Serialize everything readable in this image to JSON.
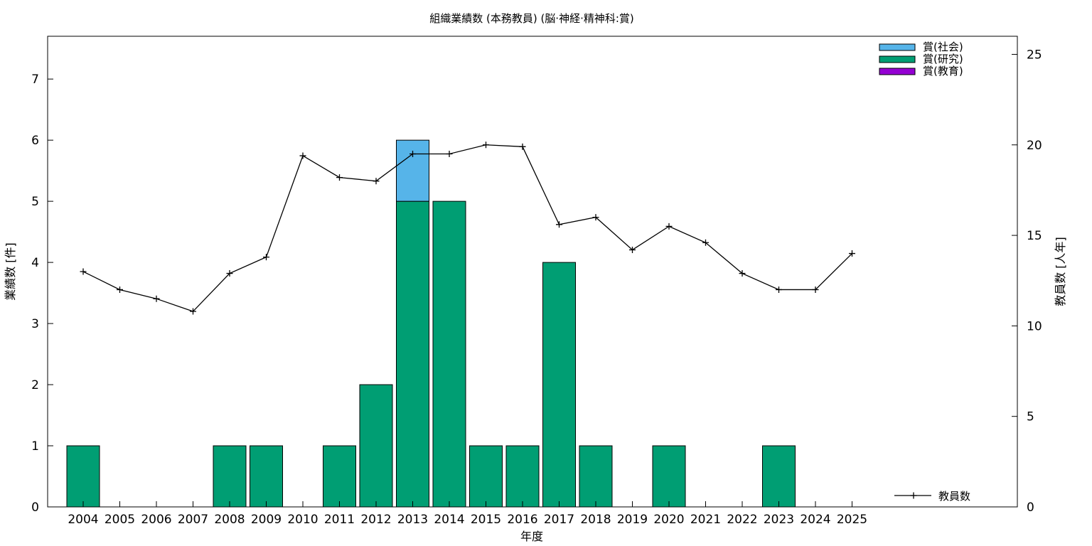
{
  "chart_data": {
    "type": "bar",
    "title": "組織業績数 (本務教員) (脳·神経·精神科:賞)",
    "xlabel": "年度",
    "ylabel": "業績数 [件]",
    "y2label": "教員数 [人年]",
    "categories": [
      "2004",
      "2005",
      "2006",
      "2007",
      "2008",
      "2009",
      "2010",
      "2011",
      "2012",
      "2013",
      "2014",
      "2015",
      "2016",
      "2017",
      "2018",
      "2019",
      "2020",
      "2021",
      "2022",
      "2023",
      "2024",
      "2025"
    ],
    "ylim": [
      0,
      7.7
    ],
    "yticks": [
      0,
      1,
      2,
      3,
      4,
      5,
      6,
      7
    ],
    "y2lim": [
      0,
      26
    ],
    "y2ticks": [
      0,
      5,
      10,
      15,
      20,
      25
    ],
    "stacked": true,
    "grid": false,
    "legend_position": "top-right",
    "series": [
      {
        "name": "賞(研究)",
        "color": "#009e73",
        "axis": "left",
        "values": [
          1,
          0,
          0,
          0,
          1,
          1,
          0,
          1,
          2,
          5,
          5,
          1,
          1,
          4,
          1,
          0,
          1,
          0,
          0,
          1,
          0,
          0
        ]
      },
      {
        "name": "賞(社会)",
        "color": "#56b4e9",
        "axis": "left",
        "values": [
          0,
          0,
          0,
          0,
          0,
          0,
          0,
          0,
          0,
          1,
          0,
          0,
          0,
          0,
          0,
          0,
          0,
          0,
          0,
          0,
          0,
          0
        ]
      },
      {
        "name": "賞(教育)",
        "color": "#9400d3",
        "axis": "left",
        "values": [
          0,
          0,
          0,
          0,
          0,
          0,
          0,
          0,
          0,
          0,
          0,
          0,
          0,
          0,
          0,
          0,
          0,
          0,
          0,
          0,
          0,
          0
        ]
      }
    ],
    "line_series": {
      "name": "教員数",
      "color": "#000000",
      "axis": "right",
      "values": [
        13.0,
        12.0,
        11.5,
        10.8,
        12.9,
        13.8,
        19.4,
        18.2,
        18.0,
        19.5,
        19.5,
        20.0,
        19.9,
        15.6,
        16.0,
        14.2,
        15.5,
        14.6,
        12.9,
        12.0,
        12.0,
        14.0
      ]
    },
    "legend_order": [
      "賞(社会)",
      "賞(研究)",
      "賞(教育)"
    ]
  }
}
